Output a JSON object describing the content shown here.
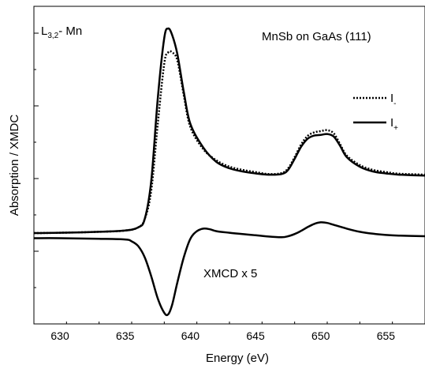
{
  "chart_data": {
    "type": "line",
    "title_left_main": "L",
    "title_left_sub": "3,2",
    "title_left_suffix": "- Mn",
    "title_right": "MnSb on GaAs (111)",
    "annotation": "XMCD x 5",
    "xlabel": "Energy (eV)",
    "ylabel": "Absorption / XMDC",
    "xlim": [
      628,
      658
    ],
    "ylim": [
      0,
      1
    ],
    "x_ticks": [
      630,
      635,
      640,
      645,
      650,
      655
    ],
    "x_tick_labels": [
      "630",
      "635",
      "640",
      "645",
      "650",
      "655"
    ],
    "y_ticks": [],
    "grid": false,
    "legend_position": "right",
    "legend": [
      {
        "main": "I",
        "sub": "-",
        "style": "dotted"
      },
      {
        "main": "I",
        "sub": "+",
        "style": "solid"
      }
    ],
    "series": [
      {
        "key": "I_minus",
        "style": "dotted",
        "x": [
          628,
          630,
          633,
          635,
          636,
          636.5,
          637,
          637.5,
          638,
          638.3,
          638.6,
          639,
          639.5,
          640,
          641,
          642,
          643,
          644,
          645,
          646,
          647,
          647.5,
          648,
          648.5,
          649,
          649.5,
          650,
          650.5,
          651,
          651.5,
          652,
          653,
          654,
          655,
          656,
          658
        ],
        "y": [
          0.286,
          0.287,
          0.29,
          0.294,
          0.304,
          0.33,
          0.42,
          0.63,
          0.82,
          0.855,
          0.855,
          0.83,
          0.72,
          0.62,
          0.55,
          0.515,
          0.495,
          0.485,
          0.478,
          0.472,
          0.475,
          0.49,
          0.525,
          0.565,
          0.592,
          0.603,
          0.607,
          0.61,
          0.6,
          0.565,
          0.53,
          0.5,
          0.485,
          0.478,
          0.473,
          0.47
        ]
      },
      {
        "key": "I_plus",
        "style": "solid",
        "x": [
          628,
          630,
          633,
          635,
          636,
          636.5,
          637,
          637.5,
          638,
          638.3,
          638.6,
          639,
          639.5,
          640,
          641,
          642,
          643,
          644,
          645,
          646,
          647,
          647.5,
          648,
          648.5,
          649,
          649.5,
          650,
          650.5,
          651,
          651.5,
          652,
          653,
          654,
          655,
          656,
          658
        ],
        "y": [
          0.286,
          0.287,
          0.29,
          0.294,
          0.304,
          0.33,
          0.45,
          0.71,
          0.9,
          0.93,
          0.91,
          0.85,
          0.73,
          0.63,
          0.555,
          0.51,
          0.49,
          0.48,
          0.474,
          0.47,
          0.472,
          0.485,
          0.52,
          0.558,
          0.583,
          0.593,
          0.595,
          0.598,
          0.59,
          0.56,
          0.525,
          0.495,
          0.48,
          0.474,
          0.47,
          0.467
        ]
      },
      {
        "key": "xmcd",
        "style": "solid",
        "x": [
          628,
          630,
          633,
          635,
          635.5,
          636,
          636.5,
          637,
          637.5,
          638,
          638.3,
          638.6,
          639,
          639.5,
          640,
          640.5,
          641,
          641.5,
          642,
          643,
          644,
          645,
          646,
          647,
          647.5,
          648,
          648.5,
          649,
          649.5,
          650,
          650.5,
          651,
          652,
          653,
          654,
          655,
          656,
          658
        ],
        "y": [
          0.27,
          0.27,
          0.268,
          0.266,
          0.26,
          0.245,
          0.21,
          0.15,
          0.08,
          0.035,
          0.03,
          0.06,
          0.13,
          0.21,
          0.268,
          0.292,
          0.3,
          0.298,
          0.292,
          0.287,
          0.283,
          0.279,
          0.275,
          0.273,
          0.276,
          0.283,
          0.293,
          0.305,
          0.315,
          0.32,
          0.318,
          0.312,
          0.3,
          0.29,
          0.284,
          0.28,
          0.278,
          0.276
        ]
      }
    ]
  }
}
